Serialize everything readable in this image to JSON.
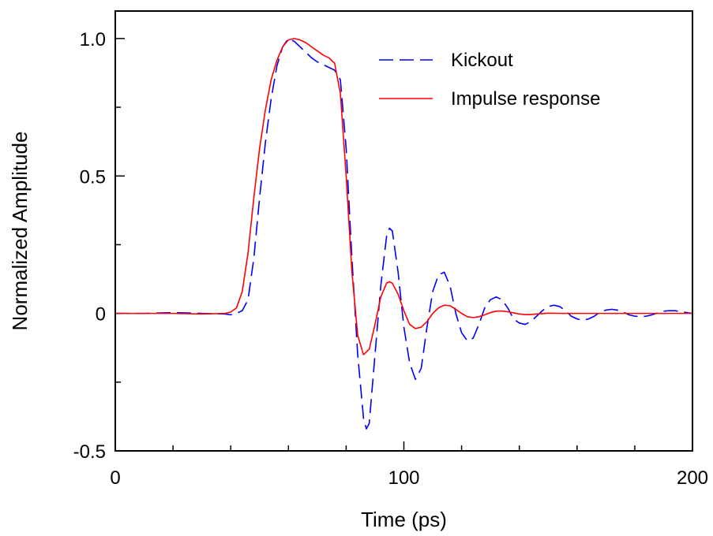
{
  "chart_data": {
    "type": "line",
    "xlabel": "Time (ps)",
    "ylabel": "Normalized Amplitude",
    "xlim": [
      0,
      200
    ],
    "ylim": [
      -0.5,
      1.1
    ],
    "x_major_ticks": [
      0,
      100,
      200
    ],
    "x_major_tick_labels": [
      "0",
      "100",
      "200"
    ],
    "x_minor_step": 20,
    "y_major_ticks": [
      -0.5,
      0,
      0.5,
      1.0
    ],
    "y_major_tick_labels": [
      "-0.5",
      "0",
      "0.5",
      "1.0"
    ],
    "y_minor_step": 0.25,
    "grid": false,
    "legend_position": "top-right",
    "series": [
      {
        "name": "Kickout",
        "color": "#0000ff",
        "style": "dashed",
        "points": [
          [
            0,
            0
          ],
          [
            10,
            0
          ],
          [
            20,
            0.003
          ],
          [
            30,
            0
          ],
          [
            38,
            -0.002
          ],
          [
            40,
            -0.005
          ],
          [
            42,
            0
          ],
          [
            44,
            0.01
          ],
          [
            46,
            0.05
          ],
          [
            48,
            0.2
          ],
          [
            50,
            0.42
          ],
          [
            52,
            0.62
          ],
          [
            54,
            0.78
          ],
          [
            56,
            0.9
          ],
          [
            58,
            0.97
          ],
          [
            60,
            1.0
          ],
          [
            62,
            0.99
          ],
          [
            64,
            0.97
          ],
          [
            66,
            0.95
          ],
          [
            68,
            0.93
          ],
          [
            70,
            0.915
          ],
          [
            72,
            0.905
          ],
          [
            74,
            0.895
          ],
          [
            76,
            0.885
          ],
          [
            78,
            0.85
          ],
          [
            80,
            0.6
          ],
          [
            82,
            0.2
          ],
          [
            84,
            -0.15
          ],
          [
            86,
            -0.38
          ],
          [
            87,
            -0.42
          ],
          [
            88,
            -0.4
          ],
          [
            90,
            -0.15
          ],
          [
            92,
            0.1
          ],
          [
            94,
            0.28
          ],
          [
            95,
            0.31
          ],
          [
            96,
            0.3
          ],
          [
            98,
            0.15
          ],
          [
            100,
            -0.05
          ],
          [
            102,
            -0.18
          ],
          [
            104,
            -0.24
          ],
          [
            106,
            -0.2
          ],
          [
            108,
            -0.05
          ],
          [
            110,
            0.08
          ],
          [
            112,
            0.14
          ],
          [
            114,
            0.15
          ],
          [
            116,
            0.1
          ],
          [
            118,
            0.0
          ],
          [
            120,
            -0.07
          ],
          [
            122,
            -0.1
          ],
          [
            124,
            -0.09
          ],
          [
            126,
            -0.04
          ],
          [
            128,
            0.02
          ],
          [
            130,
            0.05
          ],
          [
            132,
            0.06
          ],
          [
            134,
            0.05
          ],
          [
            136,
            0.02
          ],
          [
            138,
            -0.02
          ],
          [
            140,
            -0.035
          ],
          [
            142,
            -0.04
          ],
          [
            144,
            -0.03
          ],
          [
            146,
            -0.01
          ],
          [
            148,
            0.01
          ],
          [
            150,
            0.025
          ],
          [
            152,
            0.03
          ],
          [
            154,
            0.025
          ],
          [
            156,
            0.01
          ],
          [
            158,
            -0.01
          ],
          [
            160,
            -0.02
          ],
          [
            162,
            -0.025
          ],
          [
            164,
            -0.02
          ],
          [
            166,
            -0.01
          ],
          [
            168,
            0.005
          ],
          [
            170,
            0.012
          ],
          [
            172,
            0.015
          ],
          [
            174,
            0.012
          ],
          [
            176,
            0.005
          ],
          [
            178,
            -0.005
          ],
          [
            180,
            -0.01
          ],
          [
            182,
            -0.012
          ],
          [
            184,
            -0.01
          ],
          [
            186,
            -0.005
          ],
          [
            188,
            0.002
          ],
          [
            190,
            0.008
          ],
          [
            192,
            0.01
          ],
          [
            194,
            0.01
          ],
          [
            196,
            0.006
          ],
          [
            198,
            0.003
          ],
          [
            200,
            0.0
          ]
        ]
      },
      {
        "name": "Impulse response",
        "color": "#ff0000",
        "style": "solid",
        "points": [
          [
            0,
            0
          ],
          [
            10,
            0
          ],
          [
            20,
            0
          ],
          [
            30,
            -0.002
          ],
          [
            38,
            0
          ],
          [
            40,
            0.005
          ],
          [
            42,
            0.02
          ],
          [
            44,
            0.08
          ],
          [
            46,
            0.22
          ],
          [
            48,
            0.42
          ],
          [
            50,
            0.6
          ],
          [
            52,
            0.74
          ],
          [
            54,
            0.85
          ],
          [
            56,
            0.92
          ],
          [
            58,
            0.97
          ],
          [
            60,
            0.995
          ],
          [
            62,
            1.0
          ],
          [
            64,
            0.995
          ],
          [
            66,
            0.985
          ],
          [
            68,
            0.97
          ],
          [
            70,
            0.955
          ],
          [
            72,
            0.94
          ],
          [
            74,
            0.93
          ],
          [
            76,
            0.91
          ],
          [
            78,
            0.8
          ],
          [
            80,
            0.5
          ],
          [
            82,
            0.15
          ],
          [
            84,
            -0.08
          ],
          [
            86,
            -0.15
          ],
          [
            88,
            -0.13
          ],
          [
            90,
            -0.04
          ],
          [
            92,
            0.06
          ],
          [
            94,
            0.11
          ],
          [
            95,
            0.115
          ],
          [
            96,
            0.11
          ],
          [
            98,
            0.07
          ],
          [
            100,
            0.01
          ],
          [
            102,
            -0.04
          ],
          [
            104,
            -0.055
          ],
          [
            106,
            -0.05
          ],
          [
            108,
            -0.03
          ],
          [
            110,
            0.0
          ],
          [
            112,
            0.02
          ],
          [
            114,
            0.03
          ],
          [
            116,
            0.028
          ],
          [
            118,
            0.015
          ],
          [
            120,
            0.0
          ],
          [
            122,
            -0.012
          ],
          [
            124,
            -0.015
          ],
          [
            126,
            -0.012
          ],
          [
            128,
            -0.005
          ],
          [
            130,
            0.003
          ],
          [
            132,
            0.008
          ],
          [
            134,
            0.009
          ],
          [
            136,
            0.006
          ],
          [
            138,
            0.002
          ],
          [
            140,
            -0.002
          ],
          [
            142,
            -0.004
          ],
          [
            144,
            -0.004
          ],
          [
            146,
            -0.002
          ],
          [
            150,
            0.001
          ],
          [
            155,
            0.0
          ],
          [
            160,
            0.0
          ],
          [
            170,
            0.0
          ],
          [
            180,
            0.0
          ],
          [
            190,
            0.0
          ],
          [
            200,
            0.0
          ]
        ]
      }
    ]
  }
}
